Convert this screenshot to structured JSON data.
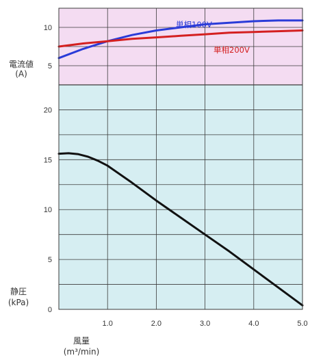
{
  "chart_data": [
    {
      "type": "line",
      "panel": "current",
      "ylabel": "電流値",
      "yunit": "(A)",
      "ylim": [
        2.5,
        12.5
      ],
      "yticks": [
        5,
        10
      ],
      "xlim": [
        0,
        5.0
      ],
      "grid": true,
      "background": "#f4dcf2",
      "series": [
        {
          "name": "単相100V",
          "color": "#2a3bd8",
          "x": [
            0,
            0.5,
            1.0,
            1.5,
            2.0,
            2.5,
            3.0,
            3.5,
            4.0,
            4.5,
            5.0
          ],
          "y": [
            6.0,
            7.2,
            8.2,
            9.0,
            9.6,
            10.0,
            10.4,
            10.6,
            10.8,
            10.9,
            10.9
          ]
        },
        {
          "name": "単相200V",
          "color": "#d42020",
          "x": [
            0,
            0.5,
            1.0,
            1.5,
            2.0,
            2.5,
            3.0,
            3.5,
            4.0,
            4.5,
            5.0
          ],
          "y": [
            7.5,
            7.9,
            8.2,
            8.5,
            8.7,
            8.9,
            9.1,
            9.3,
            9.4,
            9.5,
            9.6
          ]
        }
      ]
    },
    {
      "type": "line",
      "panel": "pressure",
      "ylabel": "静圧",
      "yunit": "(kPa)",
      "ylim": [
        0,
        22.5
      ],
      "yticks": [
        0,
        5,
        10,
        15,
        20
      ],
      "xlabel": "風量",
      "xunit": "(m³/min)",
      "xlim": [
        0,
        5.0
      ],
      "xticks": [
        "1.0",
        "2.0",
        "3.0",
        "4.0",
        "5.0"
      ],
      "grid": true,
      "background": "#d6eef2",
      "series": [
        {
          "color": "#111111",
          "x": [
            0,
            0.2,
            0.4,
            0.6,
            0.8,
            1.0,
            1.5,
            2.0,
            2.5,
            3.0,
            3.5,
            4.0,
            4.5,
            5.0
          ],
          "y": [
            15.6,
            15.65,
            15.55,
            15.3,
            14.9,
            14.4,
            12.7,
            10.9,
            9.2,
            7.5,
            5.8,
            4.0,
            2.2,
            0.4
          ]
        }
      ]
    }
  ]
}
